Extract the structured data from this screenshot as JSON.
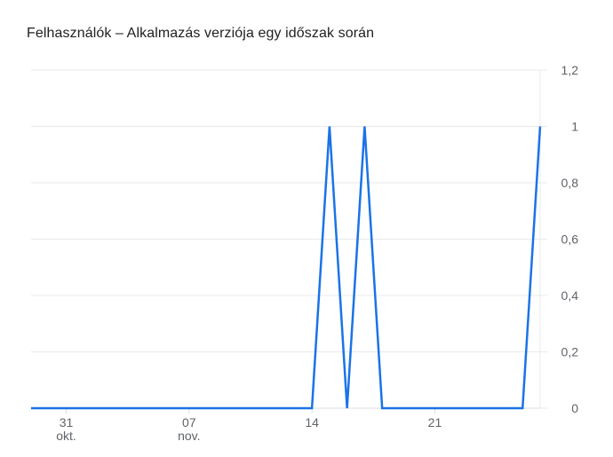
{
  "chart_data": {
    "type": "line",
    "title": "Felhasználók – Alkalmazás verziója egy időszak során",
    "xlabel": "",
    "ylabel": "",
    "ylim": [
      0,
      1.2
    ],
    "y_ticks": [
      "0",
      "0,2",
      "0,4",
      "0,6",
      "0,8",
      "1",
      "1,2"
    ],
    "x_ticks": [
      {
        "date": "2023-10-31",
        "label": "31",
        "sublabel": "okt."
      },
      {
        "date": "2023-11-07",
        "label": "07",
        "sublabel": "nov."
      },
      {
        "date": "2023-11-14",
        "label": "14",
        "sublabel": ""
      },
      {
        "date": "2023-11-21",
        "label": "21",
        "sublabel": ""
      }
    ],
    "x": [
      "2023-10-29",
      "2023-10-30",
      "2023-10-31",
      "2023-11-01",
      "2023-11-02",
      "2023-11-03",
      "2023-11-04",
      "2023-11-05",
      "2023-11-06",
      "2023-11-07",
      "2023-11-08",
      "2023-11-09",
      "2023-11-10",
      "2023-11-11",
      "2023-11-12",
      "2023-11-13",
      "2023-11-14",
      "2023-11-15",
      "2023-11-16",
      "2023-11-17",
      "2023-11-18",
      "2023-11-19",
      "2023-11-20",
      "2023-11-21",
      "2023-11-22",
      "2023-11-23",
      "2023-11-24",
      "2023-11-25",
      "2023-11-26",
      "2023-11-27"
    ],
    "series": [
      {
        "values": [
          0,
          0,
          0,
          0,
          0,
          0,
          0,
          0,
          0,
          0,
          0,
          0,
          0,
          0,
          0,
          0,
          0,
          1,
          0,
          1,
          0,
          0,
          0,
          0,
          0,
          0,
          0,
          0,
          0,
          1
        ],
        "color": "#1a73e8"
      }
    ],
    "grid": true,
    "y_axis_side": "right",
    "grid_color": "#e8eaed",
    "axis_color": "#dadce0",
    "text_color": "#5f6368"
  }
}
